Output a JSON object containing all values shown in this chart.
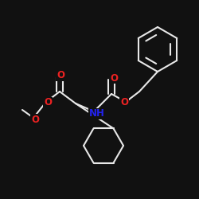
{
  "bg_color": "#111111",
  "bond_color": "#e8e8e8",
  "o_color": "#ee2222",
  "n_color": "#2222ee",
  "line_width": 1.5,
  "font_size": 8.5,
  "fig_size": [
    2.5,
    2.5
  ],
  "dpi": 100,
  "xlim": [
    0,
    250
  ],
  "ylim": [
    0,
    250
  ]
}
